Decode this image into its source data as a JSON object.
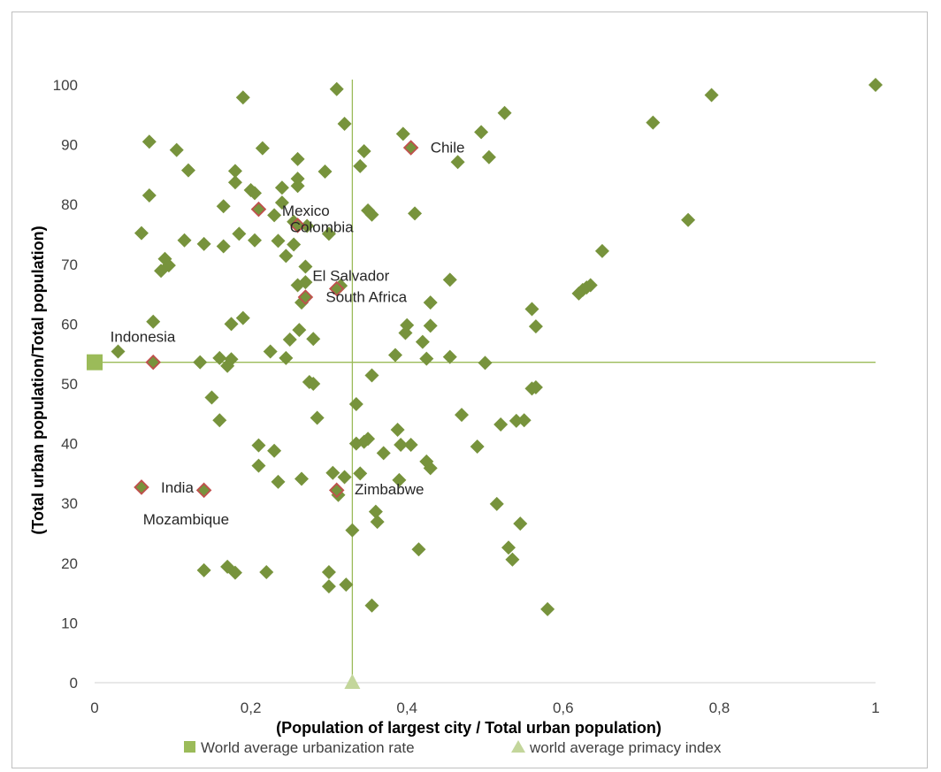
{
  "chart_data": {
    "type": "scatter",
    "title": "",
    "xlabel": "(Population of largest city / Total urban population)",
    "ylabel": "(Total urban population/Total population)",
    "xlim": [
      0,
      1
    ],
    "ylim": [
      0,
      100
    ],
    "x_ticks": [
      0,
      0.2,
      0.4,
      0.6,
      0.8,
      1
    ],
    "x_tick_labels": [
      "0",
      "0,2",
      "0,4",
      "0,6",
      "0,8",
      "1"
    ],
    "y_ticks": [
      0,
      10,
      20,
      30,
      40,
      50,
      60,
      70,
      80,
      90,
      100
    ],
    "y_tick_labels": [
      "0",
      "10",
      "20",
      "30",
      "40",
      "50",
      "60",
      "70",
      "80",
      "90",
      "100"
    ],
    "grid": false,
    "legend_position": "bottom",
    "colors": {
      "points": "#77933c",
      "highlight_edge": "#c0504d",
      "reference_line": "#9bbb59",
      "urbanization_marker": "#9bbb59",
      "primacy_marker": "#c3d69b"
    },
    "reference_lines": {
      "world_average_urbanization_rate": 53.6,
      "world_average_primacy_index": 0.33
    },
    "legend": [
      {
        "label": "World average urbanization rate",
        "marker": "square"
      },
      {
        "label": "world average primacy index",
        "marker": "triangle"
      }
    ],
    "series": [
      {
        "marker": "diamond",
        "points": [
          [
            0.03,
            55.4
          ],
          [
            0.06,
            75.2
          ],
          [
            0.07,
            81.5
          ],
          [
            0.07,
            90.5
          ],
          [
            0.075,
            60.4
          ],
          [
            0.085,
            68.9
          ],
          [
            0.09,
            70.9
          ],
          [
            0.095,
            69.8
          ],
          [
            0.105,
            89.1
          ],
          [
            0.115,
            74.0
          ],
          [
            0.12,
            85.7
          ],
          [
            0.135,
            53.6
          ],
          [
            0.14,
            18.8
          ],
          [
            0.14,
            73.4
          ],
          [
            0.15,
            47.7
          ],
          [
            0.16,
            43.9
          ],
          [
            0.16,
            54.3
          ],
          [
            0.165,
            79.7
          ],
          [
            0.165,
            73.0
          ],
          [
            0.17,
            53.0
          ],
          [
            0.17,
            19.4
          ],
          [
            0.175,
            60.0
          ],
          [
            0.175,
            54.1
          ],
          [
            0.18,
            18.4
          ],
          [
            0.18,
            85.6
          ],
          [
            0.18,
            83.7
          ],
          [
            0.185,
            75.1
          ],
          [
            0.19,
            61.0
          ],
          [
            0.19,
            97.9
          ],
          [
            0.2,
            82.4
          ],
          [
            0.205,
            81.9
          ],
          [
            0.205,
            74.0
          ],
          [
            0.21,
            39.7
          ],
          [
            0.21,
            36.3
          ],
          [
            0.215,
            89.4
          ],
          [
            0.22,
            18.5
          ],
          [
            0.225,
            55.4
          ],
          [
            0.23,
            38.8
          ],
          [
            0.23,
            78.2
          ],
          [
            0.235,
            33.6
          ],
          [
            0.235,
            73.9
          ],
          [
            0.24,
            82.8
          ],
          [
            0.24,
            80.3
          ],
          [
            0.245,
            71.4
          ],
          [
            0.245,
            54.3
          ],
          [
            0.25,
            57.4
          ],
          [
            0.255,
            73.3
          ],
          [
            0.255,
            77.1
          ],
          [
            0.26,
            87.6
          ],
          [
            0.26,
            84.3
          ],
          [
            0.26,
            83.1
          ],
          [
            0.26,
            66.5
          ],
          [
            0.262,
            59.0
          ],
          [
            0.265,
            34.1
          ],
          [
            0.265,
            63.6
          ],
          [
            0.27,
            67.0
          ],
          [
            0.27,
            69.6
          ],
          [
            0.272,
            76.4
          ],
          [
            0.275,
            50.3
          ],
          [
            0.28,
            50.0
          ],
          [
            0.28,
            57.5
          ],
          [
            0.285,
            44.3
          ],
          [
            0.295,
            85.5
          ],
          [
            0.3,
            75.1
          ],
          [
            0.3,
            18.5
          ],
          [
            0.3,
            16.1
          ],
          [
            0.305,
            35.1
          ],
          [
            0.31,
            99.3
          ],
          [
            0.312,
            31.4
          ],
          [
            0.315,
            66.4
          ],
          [
            0.32,
            93.5
          ],
          [
            0.32,
            34.4
          ],
          [
            0.322,
            16.4
          ],
          [
            0.33,
            25.5
          ],
          [
            0.335,
            46.6
          ],
          [
            0.335,
            40.0
          ],
          [
            0.34,
            35.0
          ],
          [
            0.34,
            86.4
          ],
          [
            0.345,
            88.9
          ],
          [
            0.345,
            40.3
          ],
          [
            0.35,
            40.8
          ],
          [
            0.35,
            79.0
          ],
          [
            0.355,
            78.3
          ],
          [
            0.355,
            51.4
          ],
          [
            0.355,
            12.9
          ],
          [
            0.36,
            28.6
          ],
          [
            0.362,
            26.9
          ],
          [
            0.37,
            38.4
          ],
          [
            0.385,
            54.8
          ],
          [
            0.388,
            42.3
          ],
          [
            0.39,
            33.9
          ],
          [
            0.392,
            39.8
          ],
          [
            0.395,
            91.8
          ],
          [
            0.398,
            58.5
          ],
          [
            0.4,
            59.8
          ],
          [
            0.405,
            39.8
          ],
          [
            0.41,
            78.5
          ],
          [
            0.415,
            22.3
          ],
          [
            0.42,
            57.0
          ],
          [
            0.425,
            54.2
          ],
          [
            0.425,
            37.0
          ],
          [
            0.43,
            35.9
          ],
          [
            0.43,
            63.6
          ],
          [
            0.43,
            59.7
          ],
          [
            0.455,
            67.4
          ],
          [
            0.455,
            54.5
          ],
          [
            0.465,
            87.1
          ],
          [
            0.47,
            44.8
          ],
          [
            0.49,
            39.5
          ],
          [
            0.495,
            92.1
          ],
          [
            0.5,
            53.5
          ],
          [
            0.505,
            87.9
          ],
          [
            0.515,
            29.9
          ],
          [
            0.52,
            43.2
          ],
          [
            0.525,
            95.3
          ],
          [
            0.53,
            22.6
          ],
          [
            0.535,
            20.6
          ],
          [
            0.54,
            43.8
          ],
          [
            0.545,
            26.6
          ],
          [
            0.55,
            43.9
          ],
          [
            0.56,
            62.5
          ],
          [
            0.56,
            49.2
          ],
          [
            0.565,
            59.6
          ],
          [
            0.565,
            49.4
          ],
          [
            0.58,
            12.3
          ],
          [
            0.62,
            65.1
          ],
          [
            0.625,
            65.7
          ],
          [
            0.63,
            66.1
          ],
          [
            0.635,
            66.5
          ],
          [
            0.65,
            72.2
          ],
          [
            0.715,
            93.7
          ],
          [
            0.76,
            77.4
          ],
          [
            0.79,
            98.3
          ],
          [
            1.0,
            100.0
          ]
        ]
      },
      {
        "marker": "diamond-outlined",
        "points": [
          [
            0.075,
            53.6
          ],
          [
            0.06,
            32.7
          ],
          [
            0.14,
            32.2
          ],
          [
            0.21,
            79.2
          ],
          [
            0.26,
            76.5
          ],
          [
            0.27,
            64.5
          ],
          [
            0.31,
            65.9
          ],
          [
            0.31,
            32.2
          ],
          [
            0.405,
            89.5
          ]
        ]
      }
    ],
    "annotations": [
      {
        "text": "Chile",
        "x": 0.43,
        "y": 88.7
      },
      {
        "text": "Mexico",
        "x": 0.24,
        "y": 78.1
      },
      {
        "text": "Colombia",
        "x": 0.25,
        "y": 75.4
      },
      {
        "text": "El Salvador",
        "x": 0.279,
        "y": 67.2
      },
      {
        "text": "South Africa",
        "x": 0.296,
        "y": 63.7
      },
      {
        "text": "Indonesia",
        "x": 0.02,
        "y": 57.0
      },
      {
        "text": "India",
        "x": 0.085,
        "y": 31.8
      },
      {
        "text": "Mozambique",
        "x": 0.062,
        "y": 26.5
      },
      {
        "text": "Zimbabwe",
        "x": 0.333,
        "y": 31.5
      }
    ]
  }
}
